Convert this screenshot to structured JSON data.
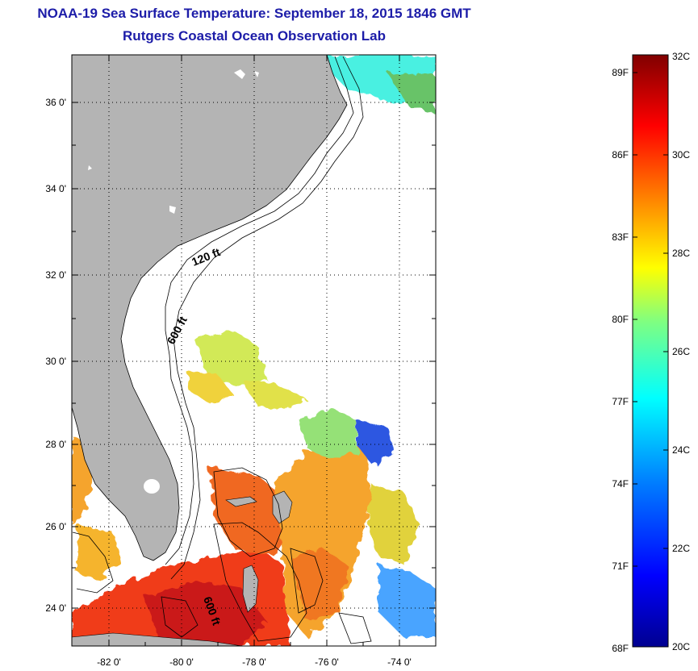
{
  "title": "NOAA-19 Sea Surface Temperature:  September 18, 2015 1846 GMT",
  "subtitle": "Rutgers Coastal Ocean Observation Lab",
  "map": {
    "lat_ticks": [
      "36 0'",
      "34 0'",
      "32 0'",
      "30 0'",
      "28 0'",
      "26 0'",
      "24 0'"
    ],
    "lon_ticks": [
      "-82 0'",
      "-80 0'",
      "-78 0'",
      "-76 0'",
      "-74 0'"
    ],
    "lon_range": [
      -83,
      -73
    ],
    "lat_range": [
      23,
      37.2
    ],
    "contour_labels": [
      "120 ft",
      "600 ft",
      "600 ft"
    ],
    "colors": {
      "land": "#b4b4b4",
      "cloud": "#ffffff",
      "grid": "#000000"
    }
  },
  "colorbar": {
    "range_c": [
      20,
      32
    ],
    "celsius_labels": [
      "32C",
      "30C",
      "28C",
      "26C",
      "24C",
      "22C",
      "20C"
    ],
    "fahrenheit_labels": [
      "89F",
      "86F",
      "83F",
      "80F",
      "77F",
      "74F",
      "71F",
      "68F"
    ],
    "colors": [
      "#000090",
      "#0000ff",
      "#0080ff",
      "#00ffff",
      "#80ff80",
      "#ffff00",
      "#ff8000",
      "#ff0000",
      "#800000"
    ]
  }
}
